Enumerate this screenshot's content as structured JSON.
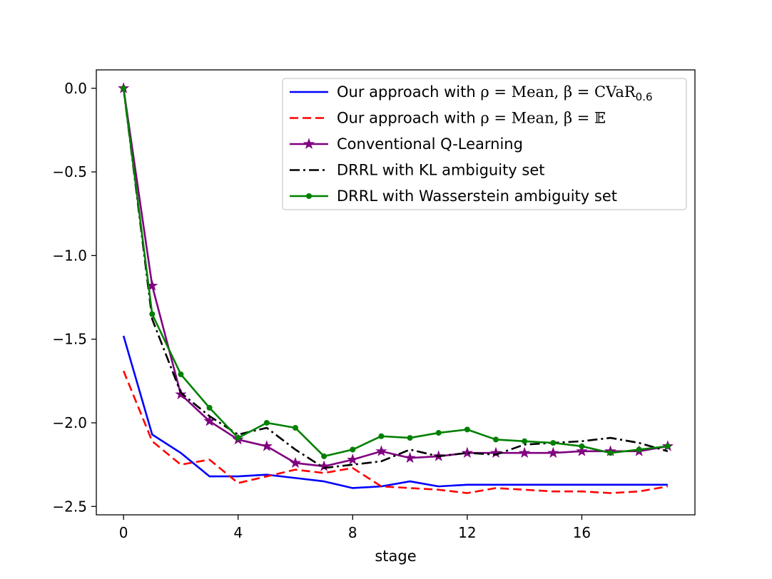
{
  "chart_data": {
    "type": "line",
    "title": "",
    "xlabel": "stage",
    "ylabel": "",
    "xlim": [
      -0.95,
      19.95
    ],
    "ylim": [
      -2.55,
      0.11
    ],
    "xticks": [
      0,
      4,
      8,
      12,
      16
    ],
    "xtick_labels": [
      "0",
      "4",
      "8",
      "12",
      "16"
    ],
    "yticks": [
      0.0,
      -0.5,
      -1.0,
      -1.5,
      -2.0,
      -2.5
    ],
    "ytick_labels": [
      "0.0",
      "−0.5",
      "−1.0",
      "−1.5",
      "−2.0",
      "−2.5"
    ],
    "grid": false,
    "legend_position": "top-right",
    "x": [
      0,
      1,
      2,
      3,
      4,
      5,
      6,
      7,
      8,
      9,
      10,
      11,
      12,
      13,
      14,
      15,
      16,
      17,
      18,
      19
    ],
    "series": [
      {
        "name": "Our approach with ρ = Mean, β = CVaR0.6",
        "legend": {
          "prefix": "Our approach with ",
          "math": "ρ = Mean, β = CVaR",
          "sub": "0.6"
        },
        "color": "#0000ff",
        "style": "solid",
        "marker": "none",
        "values": [
          -1.48,
          -2.07,
          -2.18,
          -2.32,
          -2.32,
          -2.31,
          -2.33,
          -2.35,
          -2.39,
          -2.38,
          -2.35,
          -2.38,
          -2.37,
          -2.37,
          -2.37,
          -2.37,
          -2.37,
          -2.37,
          -2.37,
          -2.37
        ]
      },
      {
        "name": "Our approach with ρ = Mean, β = 𝔼",
        "legend": {
          "prefix": "Our approach with ",
          "math": "ρ = Mean, β = 𝔼",
          "sub": ""
        },
        "color": "#ff0000",
        "style": "dashed",
        "marker": "none",
        "values": [
          -1.69,
          -2.11,
          -2.25,
          -2.22,
          -2.36,
          -2.32,
          -2.28,
          -2.3,
          -2.27,
          -2.38,
          -2.39,
          -2.4,
          -2.42,
          -2.39,
          -2.4,
          -2.41,
          -2.41,
          -2.42,
          -2.41,
          -2.38
        ]
      },
      {
        "name": "Conventional Q-Learning",
        "legend": {
          "prefix": "Conventional Q-Learning",
          "math": "",
          "sub": ""
        },
        "color": "#800080",
        "style": "solid",
        "marker": "star",
        "values": [
          0.0,
          -1.18,
          -1.83,
          -1.99,
          -2.1,
          -2.14,
          -2.24,
          -2.26,
          -2.22,
          -2.17,
          -2.21,
          -2.2,
          -2.18,
          -2.18,
          -2.18,
          -2.18,
          -2.17,
          -2.17,
          -2.17,
          -2.14
        ]
      },
      {
        "name": "DRRL with KL ambiguity set",
        "legend": {
          "prefix": "DRRL with KL ambiguity set",
          "math": "",
          "sub": ""
        },
        "color": "#000000",
        "style": "dashdot",
        "marker": "none",
        "values": [
          0.0,
          -1.38,
          -1.82,
          -1.96,
          -2.07,
          -2.03,
          -2.16,
          -2.27,
          -2.25,
          -2.23,
          -2.16,
          -2.2,
          -2.18,
          -2.19,
          -2.13,
          -2.12,
          -2.11,
          -2.09,
          -2.12,
          -2.17
        ]
      },
      {
        "name": "DRRL with Wasserstein ambiguity set",
        "legend": {
          "prefix": "DRRL with Wasserstein ambiguity set",
          "math": "",
          "sub": ""
        },
        "color": "#008000",
        "style": "solid",
        "marker": "dot",
        "values": [
          0.0,
          -1.35,
          -1.71,
          -1.91,
          -2.09,
          -2.0,
          -2.03,
          -2.2,
          -2.16,
          -2.08,
          -2.09,
          -2.06,
          -2.04,
          -2.1,
          -2.11,
          -2.12,
          -2.14,
          -2.18,
          -2.16,
          -2.14
        ]
      }
    ]
  }
}
